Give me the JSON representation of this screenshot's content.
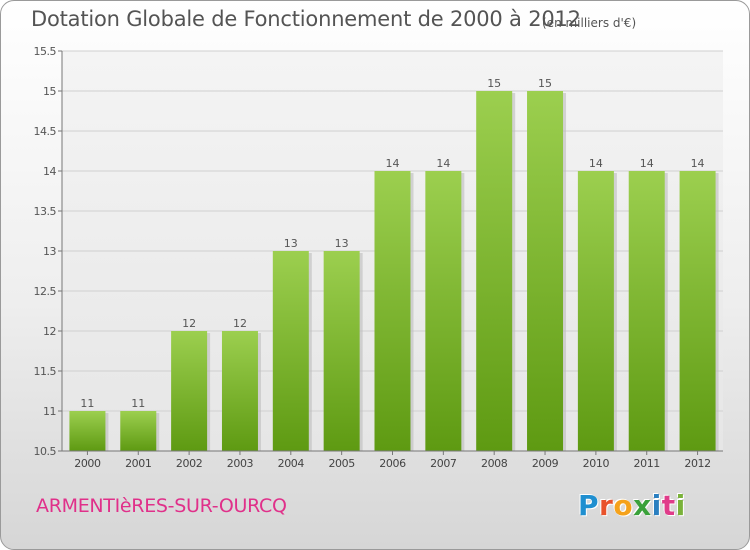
{
  "title": "Dotation Globale de Fonctionnement de 2000 à 2012",
  "unit": "(en milliers d'€)",
  "commune": "ARMENTIèRES-SUR-OURCQ",
  "logo": {
    "text": "Proxiti",
    "letters": [
      "P",
      "r",
      "o",
      "x",
      "i",
      "t",
      "i"
    ]
  },
  "colors": {
    "bar_top": "#9ccf4f",
    "bar_bottom": "#5e9a12",
    "title": "#545454",
    "commune": "#e0308a"
  },
  "chart_data": {
    "type": "bar",
    "title": "Dotation Globale de Fonctionnement de 2000 à 2012",
    "subtitle": "(en milliers d'€)",
    "categories": [
      "2000",
      "2001",
      "2002",
      "2003",
      "2004",
      "2005",
      "2006",
      "2007",
      "2008",
      "2009",
      "2010",
      "2011",
      "2012"
    ],
    "values": [
      11,
      11,
      12,
      12,
      13,
      13,
      14,
      14,
      15,
      15,
      14,
      14,
      14
    ],
    "data_labels": [
      "11",
      "11",
      "12",
      "12",
      "13",
      "13",
      "14",
      "14",
      "15",
      "15",
      "14",
      "14",
      "14"
    ],
    "yticks": [
      "10.5",
      "11",
      "11.5",
      "12",
      "12.5",
      "13",
      "13.5",
      "14",
      "14.5",
      "15",
      "15.5"
    ],
    "ylim": [
      10.5,
      15.5
    ],
    "grid": true
  }
}
